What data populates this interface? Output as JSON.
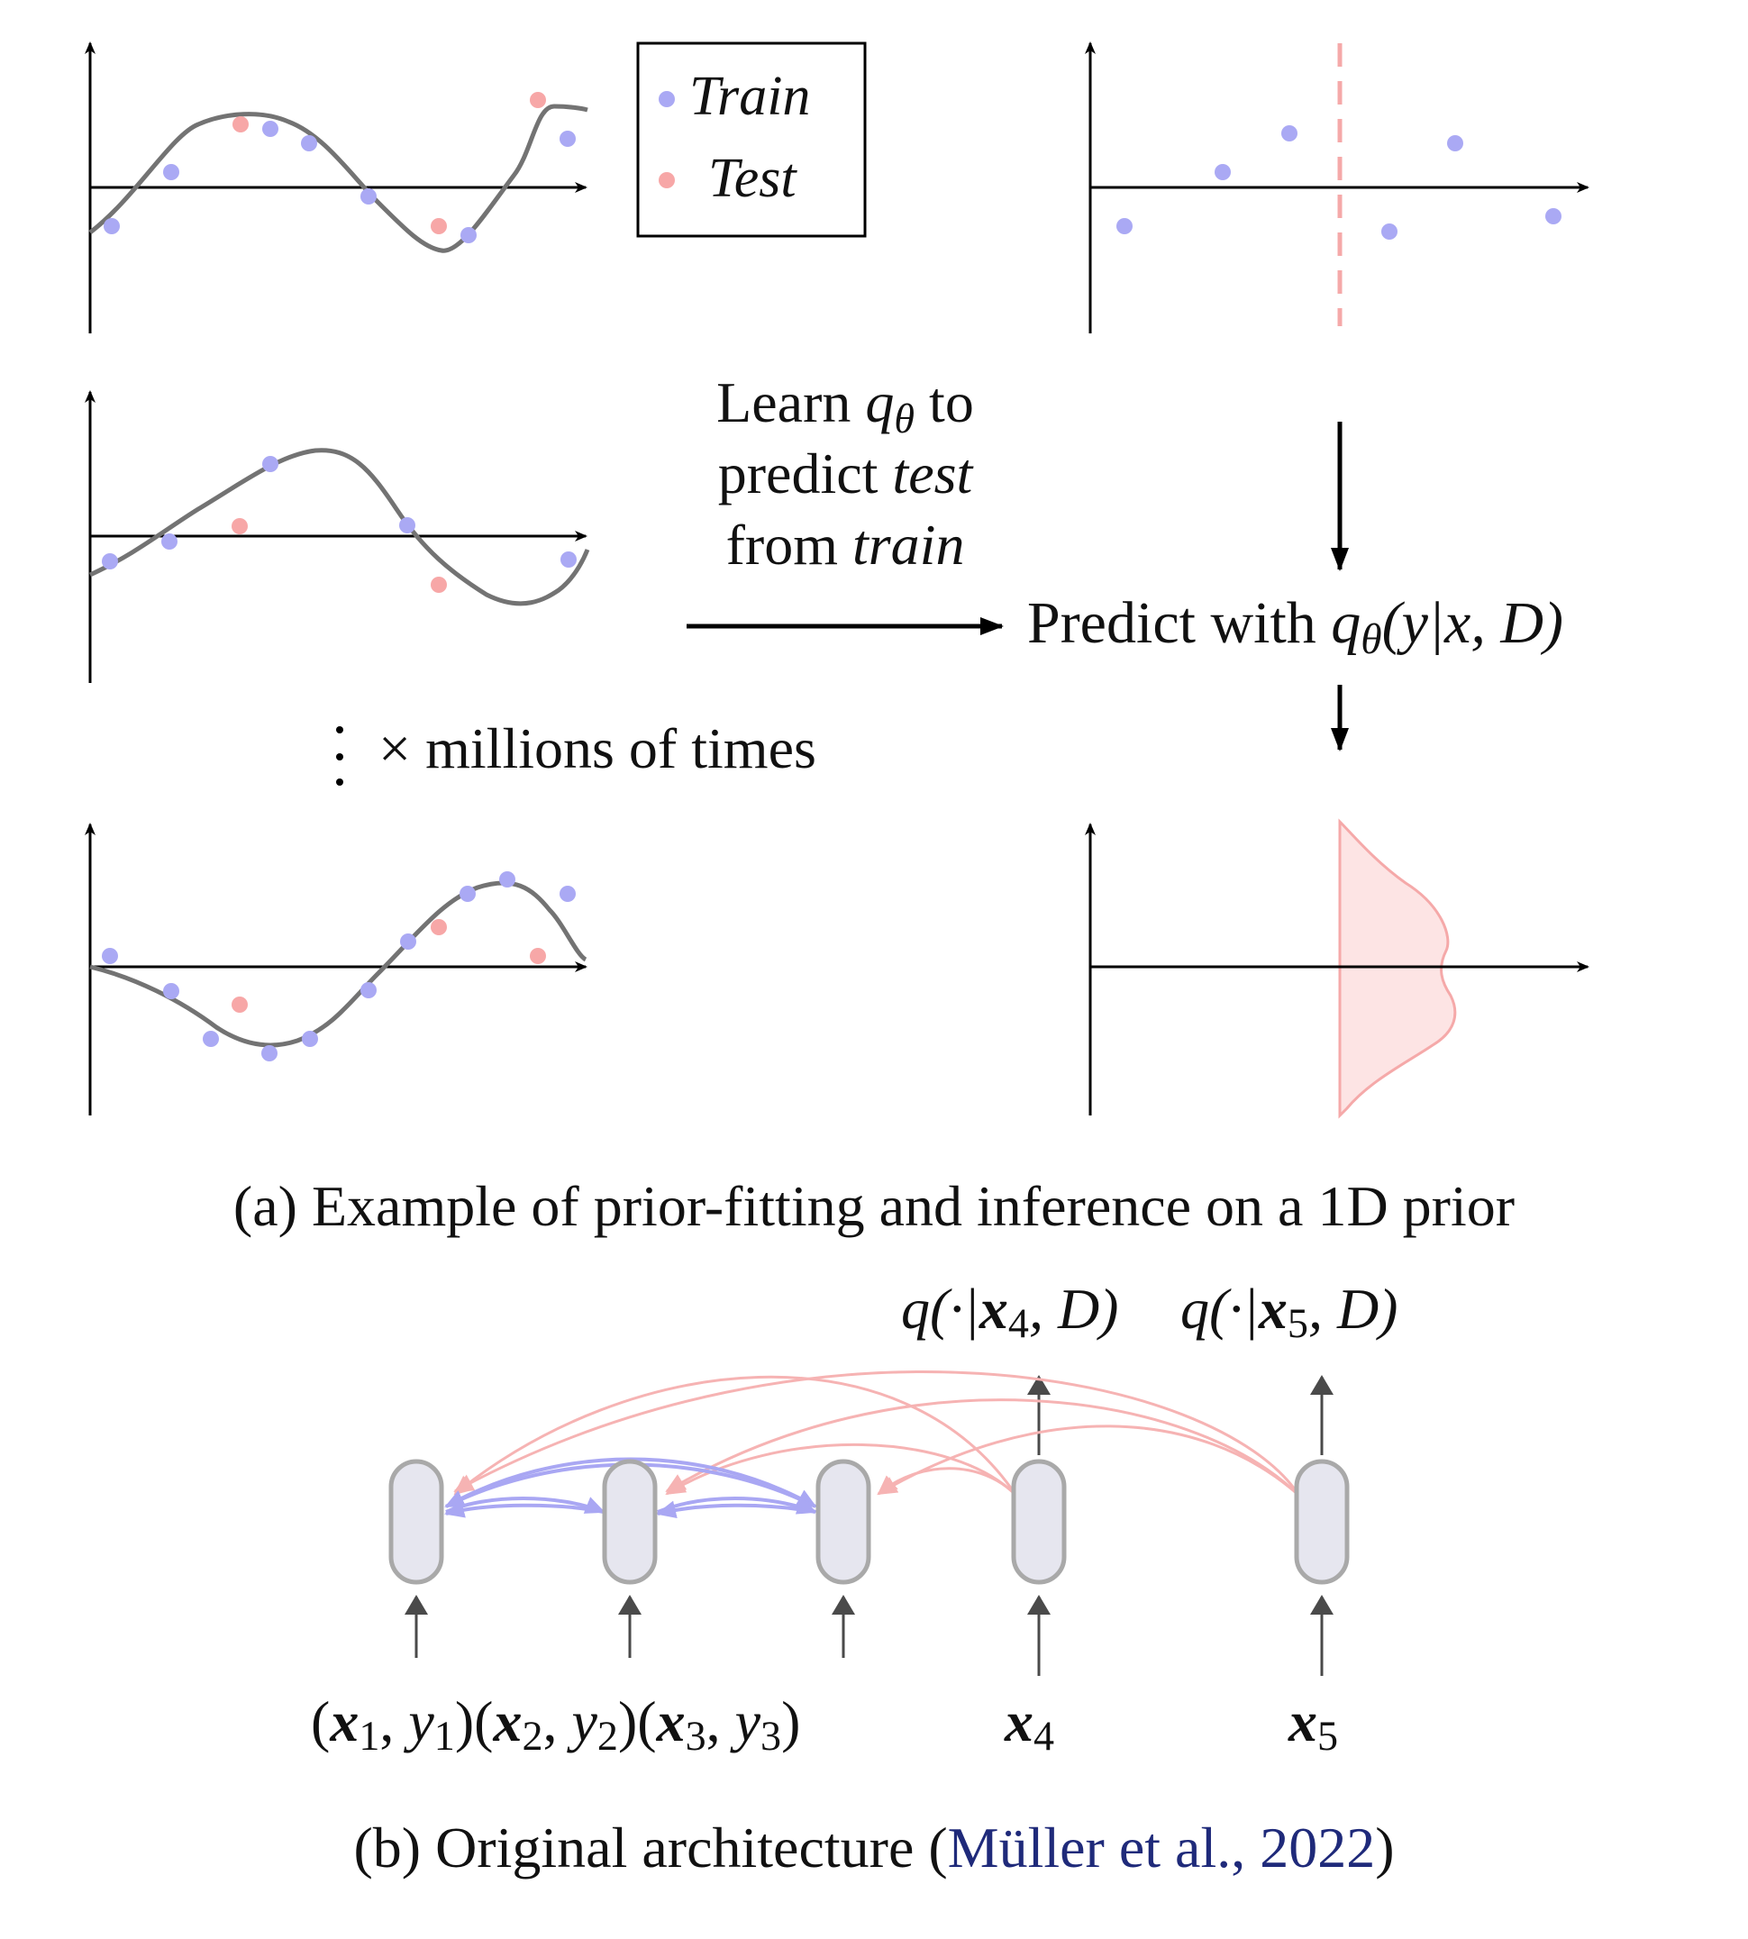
{
  "legend": {
    "train_label": "Train",
    "test_label": "Test"
  },
  "colors": {
    "train": "#aaa9f4",
    "test": "#f7a7a7",
    "curve": "#737373",
    "axis": "#000000",
    "density_fill": "#fde4e4",
    "density_edge": "#f5a9a9",
    "attention_train": "#a9a7f3",
    "attention_test": "#f6b3b3",
    "node_fill": "#e6e6ef",
    "node_edge": "#a9a9a9",
    "citation": "#1f2a7a"
  },
  "annotations": {
    "learn_line1_pre": "Learn ",
    "learn_q": "q",
    "learn_theta": "θ",
    "learn_line1_post": " to",
    "learn_line2_pre": "predict ",
    "learn_line2_it": "test",
    "learn_line3_pre": "from ",
    "learn_line3_it": "train",
    "predict_pre": "Predict with ",
    "predict_q": "q",
    "predict_theta": "θ",
    "predict_args": "(y|x, D)",
    "repeat": "× millions of times"
  },
  "captions": {
    "a": "(a) Example of prior-fitting and inference on a 1D prior",
    "b_pre": "(b) Original architecture (",
    "b_cite": "Müller et al., 2022",
    "b_post": ")"
  },
  "architecture": {
    "outputs": [
      {
        "pre": "q(·|",
        "x": "x",
        "sub": "4",
        "post": ", D)"
      },
      {
        "pre": "q(·|",
        "x": "x",
        "sub": "5",
        "post": ", D)"
      }
    ],
    "inputs": [
      {
        "x_sub": "1",
        "y": "y",
        "y_sub": "1"
      },
      {
        "x_sub": "2",
        "y": "y",
        "y_sub": "2"
      },
      {
        "x_sub": "3",
        "y": "y",
        "y_sub": "3"
      },
      {
        "x_sub": "4"
      },
      {
        "x_sub": "5"
      }
    ]
  }
}
